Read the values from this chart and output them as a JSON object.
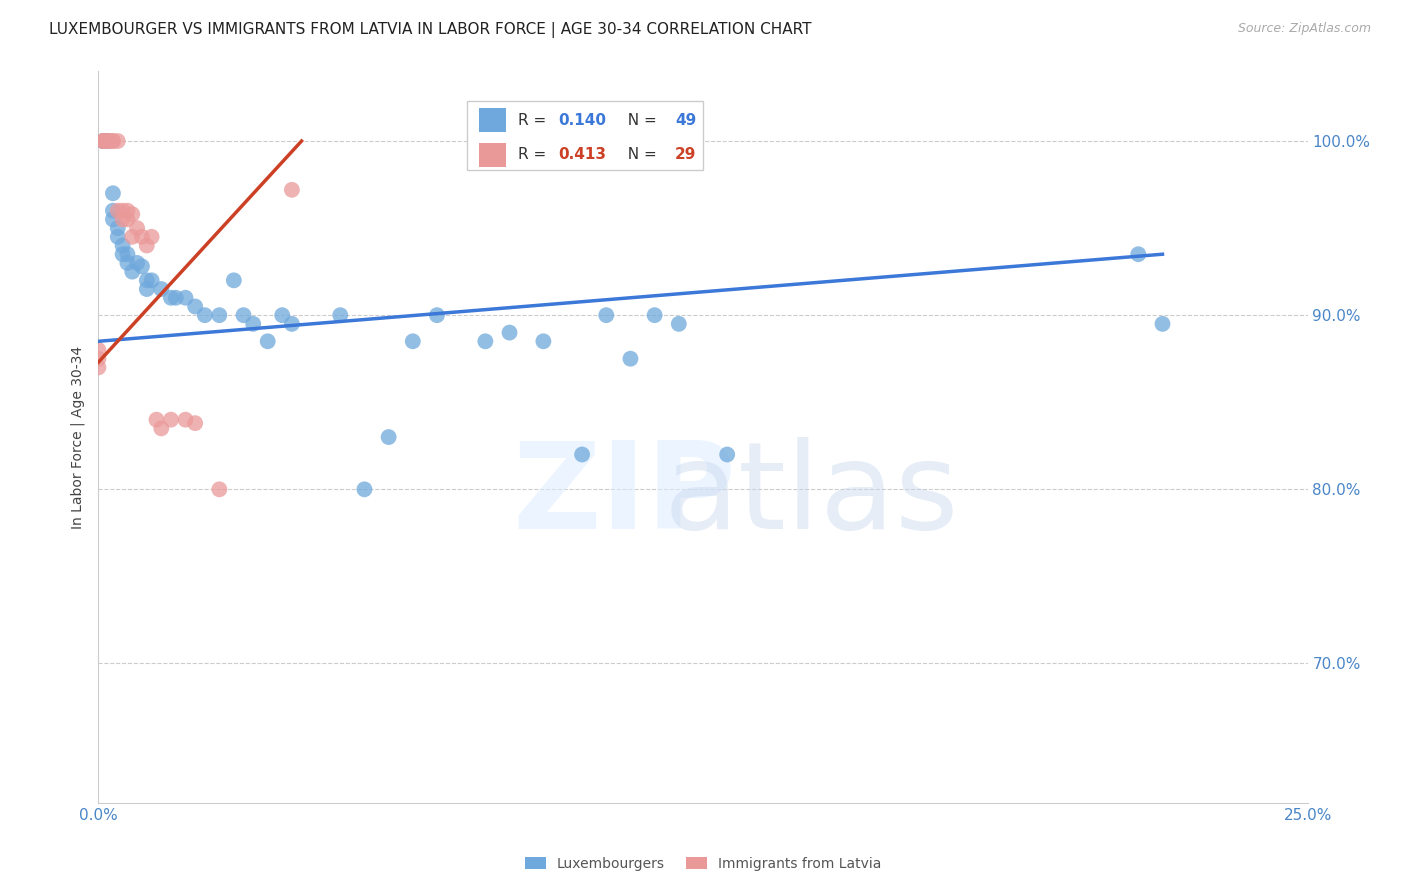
{
  "title": "LUXEMBOURGER VS IMMIGRANTS FROM LATVIA IN LABOR FORCE | AGE 30-34 CORRELATION CHART",
  "source": "Source: ZipAtlas.com",
  "ylabel": "In Labor Force | Age 30-34",
  "xlim": [
    0.0,
    0.25
  ],
  "ylim": [
    0.62,
    1.04
  ],
  "xticks": [
    0.0,
    0.05,
    0.1,
    0.15,
    0.2,
    0.25
  ],
  "xticklabels": [
    "0.0%",
    "",
    "",
    "",
    "",
    "25.0%"
  ],
  "yticks": [
    0.7,
    0.8,
    0.9,
    1.0
  ],
  "yticklabels": [
    "70.0%",
    "80.0%",
    "90.0%",
    "100.0%"
  ],
  "luxembourgers_x": [
    0.001,
    0.001,
    0.001,
    0.002,
    0.002,
    0.003,
    0.003,
    0.003,
    0.004,
    0.004,
    0.005,
    0.005,
    0.006,
    0.006,
    0.007,
    0.008,
    0.009,
    0.01,
    0.01,
    0.011,
    0.013,
    0.015,
    0.016,
    0.018,
    0.02,
    0.022,
    0.025,
    0.028,
    0.03,
    0.032,
    0.035,
    0.038,
    0.04,
    0.05,
    0.055,
    0.06,
    0.065,
    0.07,
    0.08,
    0.085,
    0.092,
    0.1,
    0.105,
    0.11,
    0.115,
    0.12,
    0.13,
    0.215,
    0.22
  ],
  "luxembourgers_y": [
    1.0,
    1.0,
    1.0,
    1.0,
    1.0,
    0.97,
    0.96,
    0.955,
    0.95,
    0.945,
    0.94,
    0.935,
    0.935,
    0.93,
    0.925,
    0.93,
    0.928,
    0.92,
    0.915,
    0.92,
    0.915,
    0.91,
    0.91,
    0.91,
    0.905,
    0.9,
    0.9,
    0.92,
    0.9,
    0.895,
    0.885,
    0.9,
    0.895,
    0.9,
    0.8,
    0.83,
    0.885,
    0.9,
    0.885,
    0.89,
    0.885,
    0.82,
    0.9,
    0.875,
    0.9,
    0.895,
    0.82,
    0.935,
    0.895
  ],
  "latvia_x": [
    0.0,
    0.0,
    0.0,
    0.001,
    0.001,
    0.001,
    0.002,
    0.002,
    0.003,
    0.003,
    0.004,
    0.004,
    0.005,
    0.005,
    0.006,
    0.006,
    0.007,
    0.007,
    0.008,
    0.009,
    0.01,
    0.011,
    0.012,
    0.013,
    0.015,
    0.018,
    0.02,
    0.025,
    0.04
  ],
  "latvia_y": [
    0.88,
    0.875,
    0.87,
    1.0,
    1.0,
    1.0,
    1.0,
    1.0,
    1.0,
    1.0,
    1.0,
    0.96,
    0.955,
    0.96,
    0.96,
    0.955,
    0.958,
    0.945,
    0.95,
    0.945,
    0.94,
    0.945,
    0.84,
    0.835,
    0.84,
    0.84,
    0.838,
    0.8,
    0.972
  ],
  "lux_R": 0.14,
  "lux_N": 49,
  "lat_R": 0.413,
  "lat_N": 29,
  "lux_color": "#6fa8dc",
  "lat_color": "#ea9999",
  "lux_line_color": "#3c78d8",
  "lat_line_color": "#cc4125",
  "background_color": "#ffffff",
  "grid_color": "#cccccc",
  "title_fontsize": 11,
  "tick_label_color": "#4a86c8",
  "source_fontsize": 9
}
